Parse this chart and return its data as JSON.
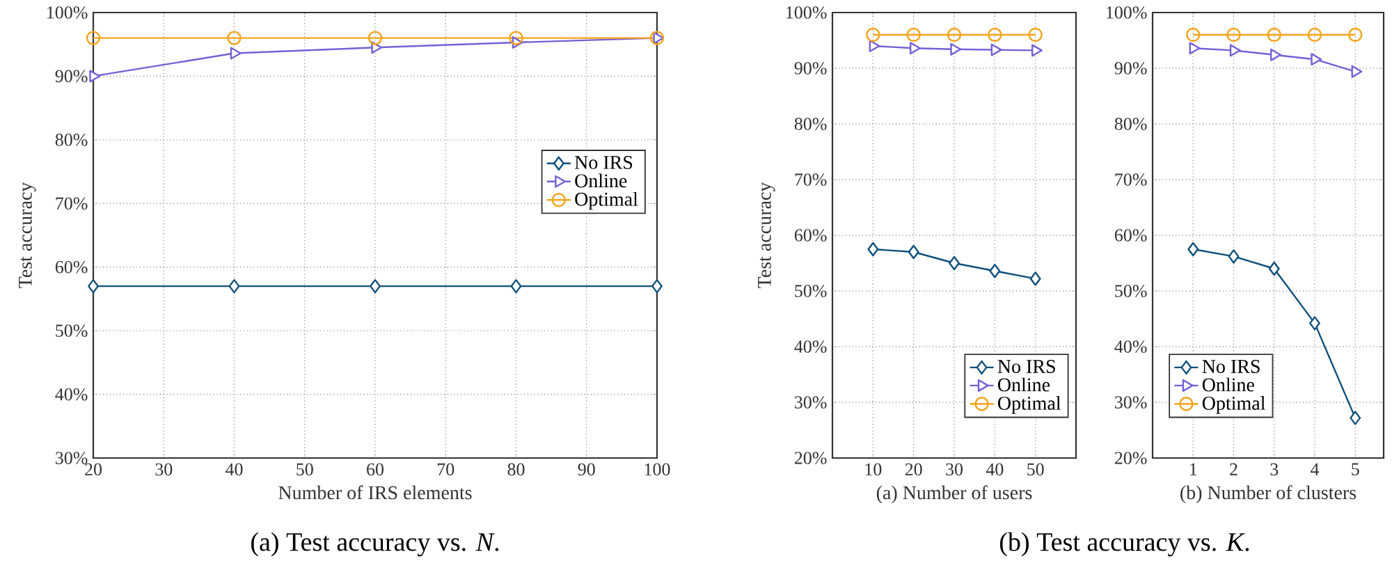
{
  "chart_data": [
    {
      "type": "line",
      "xlabel": "Number of IRS elements",
      "ylabel": "Test accuracy",
      "annotations": [
        "(a) Test accuracy vs. *N*."
      ],
      "x": [
        20,
        40,
        60,
        80,
        100
      ],
      "xlim": [
        20,
        100
      ],
      "xticks": [
        20,
        30,
        40,
        50,
        60,
        70,
        80,
        90,
        100
      ],
      "ylim": [
        30,
        100
      ],
      "yticks": [
        {
          "value": 30,
          "label": "30%"
        },
        {
          "value": 40,
          "label": "40%"
        },
        {
          "value": 50,
          "label": "50%"
        },
        {
          "value": 60,
          "label": "60%"
        },
        {
          "value": 70,
          "label": "70%"
        },
        {
          "value": 80,
          "label": "80%"
        },
        {
          "value": 90,
          "label": "90%"
        },
        {
          "value": 100,
          "label": "100%"
        }
      ],
      "grid": true,
      "legend": "right",
      "line_style": "solid",
      "series": [
        {
          "name": "No IRS",
          "color": "#0f4f7c",
          "marker": "diamond",
          "values": [
            57,
            57,
            57,
            57,
            57
          ]
        },
        {
          "name": "Online",
          "color": "#7560d6",
          "marker": "triangle",
          "values": [
            90,
            93.6,
            94.5,
            95.3,
            96
          ]
        },
        {
          "name": "Optimal",
          "color": "#f5a31a",
          "marker": "circle",
          "values": [
            96,
            96,
            96,
            96,
            96
          ]
        }
      ]
    },
    {
      "type": "line",
      "xlabel": "(a) Number of users",
      "ylabel": "Test accuracy",
      "annotations": [
        "(b) Test accuracy vs. *K*."
      ],
      "x": [
        10,
        20,
        30,
        40,
        50
      ],
      "xlim": [
        0,
        60
      ],
      "xticks": [
        10,
        20,
        30,
        40,
        50
      ],
      "ylim": [
        20,
        100
      ],
      "yticks": [
        {
          "value": 20,
          "label": "20%"
        },
        {
          "value": 30,
          "label": "30%"
        },
        {
          "value": 40,
          "label": "40%"
        },
        {
          "value": 50,
          "label": "50%"
        },
        {
          "value": 60,
          "label": "60%"
        },
        {
          "value": 70,
          "label": "70%"
        },
        {
          "value": 80,
          "label": "80%"
        },
        {
          "value": 90,
          "label": "90%"
        },
        {
          "value": 100,
          "label": "100%"
        }
      ],
      "grid": true,
      "legend": "bottom right",
      "line_style": "solid",
      "series": [
        {
          "name": "No IRS",
          "color": "#0f4f7c",
          "marker": "diamond",
          "values": [
            57.5,
            57,
            55,
            53.6,
            52.2
          ]
        },
        {
          "name": "Online",
          "color": "#7560d6",
          "marker": "triangle",
          "values": [
            94,
            93.6,
            93.4,
            93.3,
            93.2
          ]
        },
        {
          "name": "Optimal",
          "color": "#f5a31a",
          "marker": "circle",
          "values": [
            96,
            96,
            96,
            96,
            96
          ]
        }
      ]
    },
    {
      "type": "line",
      "xlabel": "(b) Number of clusters",
      "x": [
        1,
        2,
        3,
        4,
        5
      ],
      "xlim": [
        0,
        5.7
      ],
      "xticks": [
        1,
        2,
        3,
        4,
        5
      ],
      "ylim": [
        20,
        100
      ],
      "yticks": [
        {
          "value": 20,
          "label": "20%"
        },
        {
          "value": 30,
          "label": "30%"
        },
        {
          "value": 40,
          "label": "40%"
        },
        {
          "value": 50,
          "label": "50%"
        },
        {
          "value": 60,
          "label": "60%"
        },
        {
          "value": 70,
          "label": "70%"
        },
        {
          "value": 80,
          "label": "80%"
        },
        {
          "value": 90,
          "label": "90%"
        },
        {
          "value": 100,
          "label": "100%"
        }
      ],
      "grid": true,
      "legend": "bottom left",
      "line_style": "solid",
      "series": [
        {
          "name": "No IRS",
          "color": "#0f4f7c",
          "marker": "diamond",
          "values": [
            57.5,
            56.2,
            54,
            44.2,
            27.2
          ]
        },
        {
          "name": "Online",
          "color": "#7560d6",
          "marker": "triangle",
          "values": [
            93.6,
            93.2,
            92.4,
            91.6,
            89.4
          ]
        },
        {
          "name": "Optimal",
          "color": "#f5a31a",
          "marker": "circle",
          "values": [
            96,
            96,
            96,
            96,
            96
          ]
        }
      ]
    }
  ]
}
